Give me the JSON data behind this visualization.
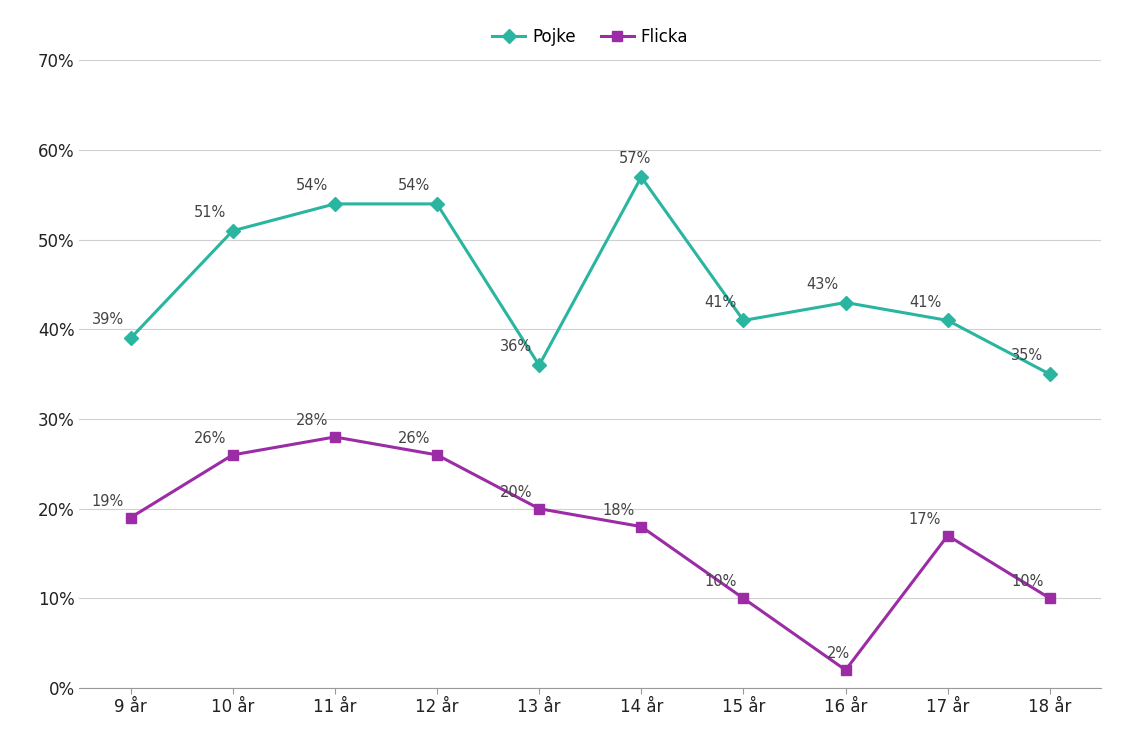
{
  "ages": [
    "9 år",
    "10 år",
    "11 år",
    "12 år",
    "13 år",
    "14 år",
    "15 år",
    "16 år",
    "17 år",
    "18 år"
  ],
  "pojke": [
    0.39,
    0.51,
    0.54,
    0.54,
    0.36,
    0.57,
    0.41,
    0.43,
    0.41,
    0.35
  ],
  "flicka": [
    0.19,
    0.26,
    0.28,
    0.26,
    0.2,
    0.18,
    0.1,
    0.02,
    0.17,
    0.1
  ],
  "pojke_labels": [
    "39%",
    "51%",
    "54%",
    "54%",
    "36%",
    "57%",
    "41%",
    "43%",
    "41%",
    "35%"
  ],
  "flicka_labels": [
    "19%",
    "26%",
    "28%",
    "26%",
    "20%",
    "18%",
    "10%",
    "2%",
    "17%",
    "10%"
  ],
  "pojke_color": "#2ab5a0",
  "flicka_color": "#9b2ca5",
  "pojke_label": "Pojke",
  "flicka_label": "Flicka",
  "ylim": [
    0,
    0.7
  ],
  "yticks": [
    0.0,
    0.1,
    0.2,
    0.3,
    0.4,
    0.5,
    0.6,
    0.7
  ],
  "background_color": "#ffffff",
  "grid_color": "#d0d0d0",
  "label_fontsize": 10.5,
  "legend_fontsize": 12,
  "tick_fontsize": 12
}
